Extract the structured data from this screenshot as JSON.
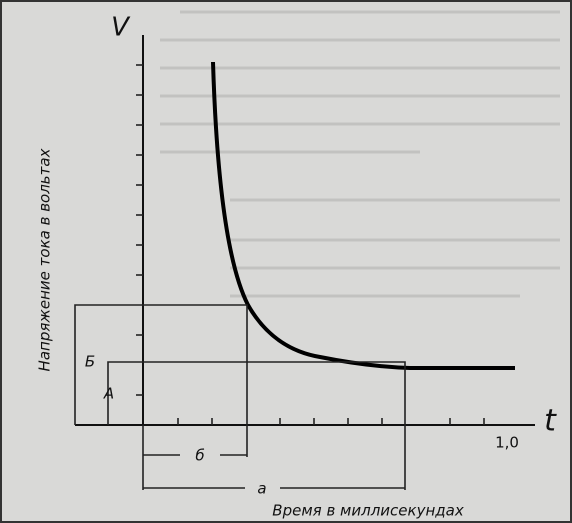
{
  "axes": {
    "y_symbol": "V",
    "x_symbol": "t",
    "x_tick": "1,0",
    "y_label": "Напряжение тока в вольтах",
    "x_label": "Время в миллисекундах"
  },
  "markers": {
    "upper_level": "Б",
    "lower_level": "А",
    "short_time": "б",
    "long_time": "а"
  }
}
